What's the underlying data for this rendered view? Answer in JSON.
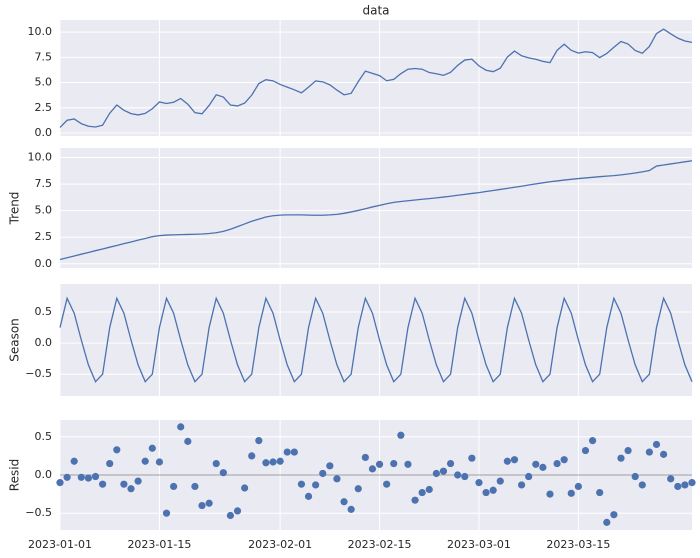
{
  "chart_data": [
    {
      "type": "line",
      "title": "data",
      "color": "#4c72b0",
      "x": [
        "2023-01-01",
        "2023-01-02",
        "2023-01-03",
        "2023-01-04",
        "2023-01-05",
        "2023-01-06",
        "2023-01-07",
        "2023-01-08",
        "2023-01-09",
        "2023-01-10",
        "2023-01-11",
        "2023-01-12",
        "2023-01-13",
        "2023-01-14",
        "2023-01-15",
        "2023-01-16",
        "2023-01-17",
        "2023-01-18",
        "2023-01-19",
        "2023-01-20",
        "2023-01-21",
        "2023-01-22",
        "2023-01-23",
        "2023-01-24",
        "2023-01-25",
        "2023-01-26",
        "2023-01-27",
        "2023-01-28",
        "2023-01-29",
        "2023-01-30",
        "2023-01-31",
        "2023-02-01",
        "2023-02-02",
        "2023-02-03",
        "2023-02-04",
        "2023-02-05",
        "2023-02-06",
        "2023-02-07",
        "2023-02-08",
        "2023-02-09",
        "2023-02-10",
        "2023-02-11",
        "2023-02-12",
        "2023-02-13",
        "2023-02-14",
        "2023-02-15",
        "2023-02-16",
        "2023-02-17",
        "2023-02-18",
        "2023-02-19",
        "2023-02-20",
        "2023-02-21",
        "2023-02-22",
        "2023-02-23",
        "2023-02-24",
        "2023-02-25",
        "2023-02-26",
        "2023-02-27",
        "2023-02-28",
        "2023-03-01",
        "2023-03-02",
        "2023-03-03",
        "2023-03-04",
        "2023-03-05",
        "2023-03-06",
        "2023-03-07",
        "2023-03-08",
        "2023-03-09",
        "2023-03-10",
        "2023-03-11",
        "2023-03-12",
        "2023-03-13",
        "2023-03-14",
        "2023-03-15",
        "2023-03-16",
        "2023-03-17",
        "2023-03-18",
        "2023-03-19",
        "2023-03-20",
        "2023-03-21",
        "2023-03-22",
        "2023-03-23",
        "2023-03-24",
        "2023-03-25",
        "2023-03-26",
        "2023-03-27",
        "2023-03-28",
        "2023-03-29",
        "2023-03-30",
        "2023-03-31"
      ],
      "xlim": [
        "2023-01-01",
        "2023-03-31"
      ],
      "values": [
        0.55,
        1.26,
        1.39,
        0.92,
        0.67,
        0.59,
        0.77,
        1.96,
        2.77,
        2.25,
        1.92,
        1.79,
        1.94,
        2.4,
        3.07,
        2.92,
        3.05,
        3.42,
        2.85,
        2.01,
        1.9,
        2.73,
        3.79,
        3.56,
        2.77,
        2.68,
        2.96,
        3.75,
        4.9,
        5.28,
        5.17,
        4.81,
        4.55,
        4.28,
        3.98,
        4.55,
        5.16,
        5.07,
        4.77,
        4.25,
        3.78,
        3.93,
        5.09,
        6.13,
        5.91,
        5.69,
        5.18,
        5.31,
        5.88,
        6.32,
        6.39,
        6.32,
        5.99,
        5.87,
        5.71,
        6.01,
        6.7,
        7.23,
        7.32,
        6.65,
        6.22,
        6.08,
        6.42,
        7.53,
        8.12,
        7.65,
        7.45,
        7.31,
        7.1,
        6.97,
        8.2,
        8.8,
        8.19,
        7.92,
        8.05,
        7.97,
        7.47,
        7.88,
        8.5,
        9.07,
        8.82,
        8.18,
        7.9,
        8.58,
        9.85,
        10.29,
        9.83,
        9.4,
        9.12,
        8.98
      ],
      "ylim": [
        -0.3,
        11.2
      ],
      "yticks": [
        {
          "value": 0,
          "label": "0.0"
        },
        {
          "value": 2.5,
          "label": "2.5"
        },
        {
          "value": 5,
          "label": "5.0"
        },
        {
          "value": 7.5,
          "label": "7.5"
        },
        {
          "value": 10,
          "label": "10.0"
        }
      ],
      "grid": true
    },
    {
      "type": "line",
      "ylabel": "Trend",
      "color": "#4c72b0",
      "values": [
        0.4,
        0.57,
        0.73,
        0.9,
        1.06,
        1.23,
        1.39,
        1.56,
        1.72,
        1.89,
        2.05,
        2.22,
        2.38,
        2.55,
        2.65,
        2.7,
        2.72,
        2.74,
        2.76,
        2.78,
        2.8,
        2.85,
        2.92,
        3.05,
        3.25,
        3.5,
        3.75,
        4.0,
        4.2,
        4.4,
        4.52,
        4.58,
        4.6,
        4.6,
        4.6,
        4.58,
        4.57,
        4.57,
        4.6,
        4.65,
        4.75,
        4.88,
        5.02,
        5.18,
        5.35,
        5.5,
        5.65,
        5.78,
        5.86,
        5.93,
        6.0,
        6.07,
        6.13,
        6.2,
        6.28,
        6.36,
        6.45,
        6.53,
        6.62,
        6.7,
        6.8,
        6.9,
        7.0,
        7.1,
        7.2,
        7.3,
        7.42,
        7.52,
        7.62,
        7.72,
        7.8,
        7.88,
        7.95,
        8.02,
        8.08,
        8.14,
        8.2,
        8.25,
        8.3,
        8.37,
        8.45,
        8.55,
        8.65,
        8.78,
        9.2,
        9.3,
        9.4,
        9.5,
        9.6,
        9.7
      ],
      "ylim": [
        -0.4,
        10.9
      ],
      "yticks": [
        {
          "value": 0,
          "label": "0.0"
        },
        {
          "value": 2.5,
          "label": "2.5"
        },
        {
          "value": 5,
          "label": "5.0"
        },
        {
          "value": 7.5,
          "label": "7.5"
        },
        {
          "value": 10,
          "label": "10.0"
        }
      ],
      "grid": true
    },
    {
      "type": "line",
      "ylabel": "Season",
      "color": "#4c72b0",
      "values": [
        0.25,
        0.72,
        0.48,
        0.05,
        -0.35,
        -0.62,
        -0.5,
        0.25,
        0.72,
        0.48,
        0.05,
        -0.35,
        -0.62,
        -0.5,
        0.25,
        0.72,
        0.48,
        0.05,
        -0.35,
        -0.62,
        -0.5,
        0.25,
        0.72,
        0.48,
        0.05,
        -0.35,
        -0.62,
        -0.5,
        0.25,
        0.72,
        0.48,
        0.05,
        -0.35,
        -0.62,
        -0.5,
        0.25,
        0.72,
        0.48,
        0.05,
        -0.35,
        -0.62,
        -0.5,
        0.25,
        0.72,
        0.48,
        0.05,
        -0.35,
        -0.62,
        -0.5,
        0.25,
        0.72,
        0.48,
        0.05,
        -0.35,
        -0.62,
        -0.5,
        0.25,
        0.72,
        0.48,
        0.05,
        -0.35,
        -0.62,
        -0.5,
        0.25,
        0.72,
        0.48,
        0.05,
        -0.35,
        -0.62,
        -0.5,
        0.25,
        0.72,
        0.48,
        0.05,
        -0.35,
        -0.62,
        -0.5,
        0.25,
        0.72,
        0.48,
        0.05,
        -0.35,
        -0.62,
        -0.5,
        0.25,
        0.72,
        0.48,
        0.05,
        -0.35,
        -0.62
      ],
      "ylim": [
        -0.85,
        0.95
      ],
      "yticks": [
        {
          "value": -0.5,
          "label": "−0.5"
        },
        {
          "value": 0,
          "label": "0.0"
        },
        {
          "value": 0.5,
          "label": "0.5"
        }
      ],
      "grid": true
    },
    {
      "type": "scatter",
      "ylabel": "Resid",
      "color": "#4c72b0",
      "hline": 0,
      "values": [
        -0.1,
        -0.03,
        0.18,
        -0.03,
        -0.04,
        -0.02,
        -0.12,
        0.15,
        0.33,
        -0.12,
        -0.18,
        -0.08,
        0.18,
        0.35,
        0.17,
        -0.5,
        -0.15,
        0.63,
        0.44,
        -0.15,
        -0.4,
        -0.37,
        0.15,
        0.03,
        -0.53,
        -0.47,
        -0.17,
        0.25,
        0.45,
        0.16,
        0.17,
        0.18,
        0.3,
        0.3,
        -0.12,
        -0.28,
        -0.13,
        0.02,
        0.12,
        -0.05,
        -0.35,
        -0.45,
        -0.18,
        0.23,
        0.08,
        0.14,
        -0.12,
        0.15,
        0.52,
        0.14,
        -0.33,
        -0.23,
        -0.19,
        0.02,
        0.05,
        0.15,
        0,
        -0.02,
        0.22,
        -0.1,
        -0.23,
        -0.2,
        -0.08,
        0.18,
        0.2,
        -0.13,
        -0.02,
        0.14,
        0.1,
        -0.25,
        0.15,
        0.2,
        -0.24,
        -0.15,
        0.32,
        0.45,
        -0.23,
        -0.62,
        -0.52,
        0.22,
        0.32,
        -0.02,
        -0.13,
        0.3,
        0.4,
        0.27,
        -0.05,
        -0.15,
        -0.13,
        -0.1
      ],
      "ylim": [
        -0.72,
        0.72
      ],
      "yticks": [
        {
          "value": -0.5,
          "label": "−0.5"
        },
        {
          "value": 0,
          "label": "0.0"
        },
        {
          "value": 0.5,
          "label": "0.5"
        }
      ],
      "grid": true,
      "xticks": [
        "2023-01-01",
        "2023-01-15",
        "2023-02-01",
        "2023-02-15",
        "2023-03-01",
        "2023-03-15"
      ]
    }
  ]
}
